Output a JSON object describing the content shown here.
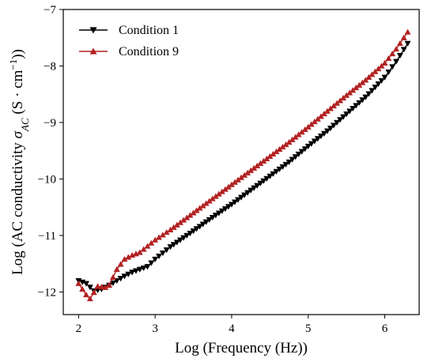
{
  "chart_data": {
    "type": "line",
    "xlabel": "Log (Frequency (Hz))",
    "ylabel": "Log (AC conductivity σ_AC (S · cm⁻¹))",
    "ylabel_parts": {
      "prefix": "Log (AC conductivity ",
      "sigma": "σ",
      "sub": "AC",
      "mid": " (S · cm",
      "sup": "−1",
      "suffix": "))"
    },
    "xlim": [
      1.8,
      6.45
    ],
    "ylim": [
      -12.4,
      -7.0
    ],
    "xticks": [
      2,
      3,
      4,
      5,
      6
    ],
    "yticks": [
      -12,
      -11,
      -10,
      -9,
      -8,
      -7
    ],
    "xtick_labels": [
      "2",
      "3",
      "4",
      "5",
      "6"
    ],
    "ytick_labels": [
      "−12",
      "−11",
      "−10",
      "−9",
      "−8",
      "−7"
    ],
    "grid": false,
    "legend_position": "top-left",
    "series": [
      {
        "name": "Condition 1",
        "color": "#000000",
        "marker": "triangle-down",
        "points": [
          [
            2.0,
            -11.8
          ],
          [
            2.1,
            -11.85
          ],
          [
            2.2,
            -11.98
          ],
          [
            2.3,
            -11.95
          ],
          [
            2.4,
            -11.88
          ],
          [
            2.5,
            -11.8
          ],
          [
            2.6,
            -11.72
          ],
          [
            2.7,
            -11.65
          ],
          [
            2.8,
            -11.6
          ],
          [
            2.9,
            -11.55
          ],
          [
            3.0,
            -11.42
          ],
          [
            3.2,
            -11.2
          ],
          [
            3.5,
            -10.92
          ],
          [
            3.75,
            -10.68
          ],
          [
            4.0,
            -10.45
          ],
          [
            4.25,
            -10.2
          ],
          [
            4.5,
            -9.95
          ],
          [
            4.75,
            -9.7
          ],
          [
            5.0,
            -9.42
          ],
          [
            5.25,
            -9.15
          ],
          [
            5.5,
            -8.85
          ],
          [
            5.75,
            -8.55
          ],
          [
            6.0,
            -8.2
          ],
          [
            6.15,
            -7.92
          ],
          [
            6.3,
            -7.6
          ]
        ]
      },
      {
        "name": "Condition 9",
        "color": "#b22222",
        "marker": "triangle-up",
        "points": [
          [
            2.0,
            -11.85
          ],
          [
            2.1,
            -12.05
          ],
          [
            2.15,
            -12.12
          ],
          [
            2.25,
            -11.9
          ],
          [
            2.35,
            -11.92
          ],
          [
            2.4,
            -11.88
          ],
          [
            2.5,
            -11.6
          ],
          [
            2.6,
            -11.42
          ],
          [
            2.7,
            -11.35
          ],
          [
            2.8,
            -11.3
          ],
          [
            3.0,
            -11.08
          ],
          [
            3.2,
            -10.9
          ],
          [
            3.5,
            -10.6
          ],
          [
            3.75,
            -10.35
          ],
          [
            4.0,
            -10.1
          ],
          [
            4.25,
            -9.85
          ],
          [
            4.5,
            -9.6
          ],
          [
            4.75,
            -9.35
          ],
          [
            5.0,
            -9.08
          ],
          [
            5.25,
            -8.8
          ],
          [
            5.5,
            -8.52
          ],
          [
            5.75,
            -8.25
          ],
          [
            6.0,
            -7.95
          ],
          [
            6.15,
            -7.7
          ],
          [
            6.3,
            -7.4
          ]
        ]
      }
    ]
  }
}
